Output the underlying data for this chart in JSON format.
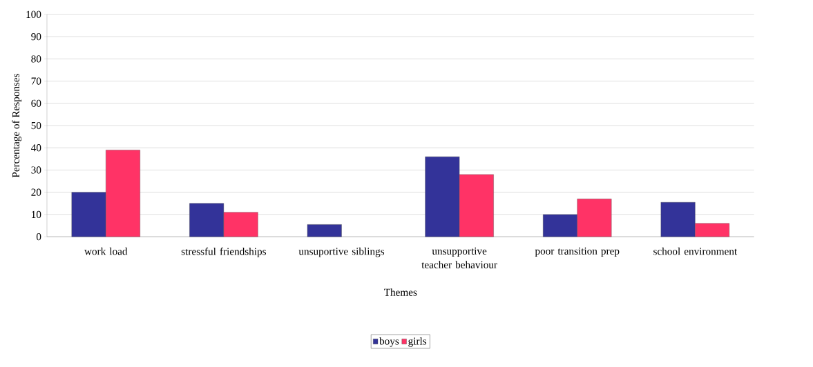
{
  "chart_data": {
    "type": "bar",
    "xlabel": "Themes",
    "ylabel": "Percentage of Responses",
    "categories": [
      "work load",
      "stressful friendships",
      "unsuportive siblings",
      "unsupportive teacher behaviour",
      "poor transition prep",
      "school environment"
    ],
    "series": [
      {
        "name": "boys",
        "color": "#333399",
        "values": [
          20,
          15,
          5.5,
          36,
          10,
          15.5
        ]
      },
      {
        "name": "girls",
        "color": "#ff3366",
        "values": [
          39,
          11,
          null,
          28,
          17,
          6
        ]
      }
    ],
    "ylim": [
      0,
      100
    ],
    "yticks": [
      0,
      10,
      20,
      30,
      40,
      50,
      60,
      70,
      80,
      90,
      100
    ],
    "grid": "y",
    "legend": "bottom"
  }
}
